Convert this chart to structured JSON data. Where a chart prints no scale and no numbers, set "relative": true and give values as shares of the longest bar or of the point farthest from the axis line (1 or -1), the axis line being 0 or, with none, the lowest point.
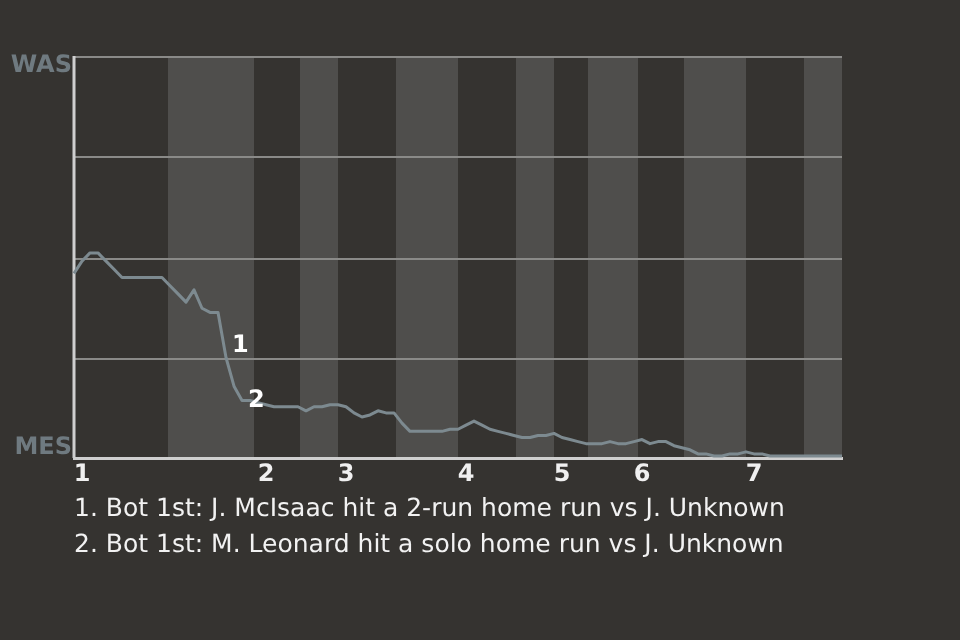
{
  "chart_data": {
    "type": "line",
    "relative": true,
    "categories": [
      null,
      "1",
      null,
      null,
      null,
      null,
      null,
      null,
      null,
      null,
      null,
      null,
      null,
      null,
      null,
      null,
      null,
      null,
      null,
      null,
      null,
      null,
      null,
      null,
      "2",
      null,
      null,
      null,
      null,
      null,
      null,
      null,
      null,
      null,
      "3",
      null,
      null,
      null,
      null,
      null,
      null,
      null,
      null,
      null,
      null,
      null,
      null,
      null,
      null,
      "4",
      null,
      null,
      null,
      null,
      null,
      null,
      null,
      null,
      null,
      null,
      null,
      "5",
      null,
      null,
      null,
      null,
      null,
      null,
      null,
      null,
      null,
      "6",
      null,
      null,
      null,
      null,
      null,
      null,
      null,
      null,
      null,
      null,
      null,
      null,
      null,
      "7",
      null,
      null,
      null,
      null,
      null,
      null,
      null,
      null,
      null,
      null,
      null
    ],
    "series": [
      {
        "color": "#7d8a90",
        "values": [
          0.9,
          0.96,
          1,
          1,
          0.96,
          0.92,
          0.88,
          0.88,
          0.88,
          0.88,
          0.88,
          0.88,
          0.84,
          0.8,
          0.76,
          0.82,
          0.73,
          0.71,
          0.71,
          0.49,
          0.35,
          0.28,
          0.28,
          0.27,
          0.26,
          0.25,
          0.25,
          0.25,
          0.25,
          0.23,
          0.25,
          0.25,
          0.26,
          0.26,
          0.25,
          0.22,
          0.2,
          0.21,
          0.23,
          0.22,
          0.22,
          0.17,
          0.13,
          0.13,
          0.13,
          0.13,
          0.13,
          0.14,
          0.14,
          0.16,
          0.18,
          0.16,
          0.14,
          0.13,
          0.12,
          0.11,
          0.1,
          0.1,
          0.11,
          0.11,
          0.12,
          0.1,
          0.09,
          0.08,
          0.07,
          0.07,
          0.07,
          0.08,
          0.07,
          0.07,
          0.08,
          0.09,
          0.07,
          0.08,
          0.08,
          0.06,
          0.05,
          0.04,
          0.02,
          0.02,
          0.01,
          0.01,
          0.02,
          0.02,
          0.03,
          0.02,
          0.02,
          0.01,
          0.01,
          0.01,
          0.01,
          0.01,
          0.01,
          0.01,
          0.01,
          0.01,
          0.01
        ]
      }
    ],
    "legend": false,
    "ref_lines": [
      {
        "axis": "y",
        "value": 0.49,
        "color": "#8a8a88"
      },
      {
        "axis": "y",
        "value": 0.98,
        "color": "#8a8a88"
      },
      {
        "axis": "y",
        "value": 1.47,
        "color": "#8a8a88"
      }
    ],
    "marker": "none",
    "line_style": "solid",
    "annotations": [
      "WAS",
      "MES",
      "1",
      "2",
      "1. Bot 1st: J. McIsaac hit a 2-run home run vs J. Unknown",
      "2. Bot 1st: M. Leonard hit a solo home run vs J. Unknown"
    ]
  }
}
